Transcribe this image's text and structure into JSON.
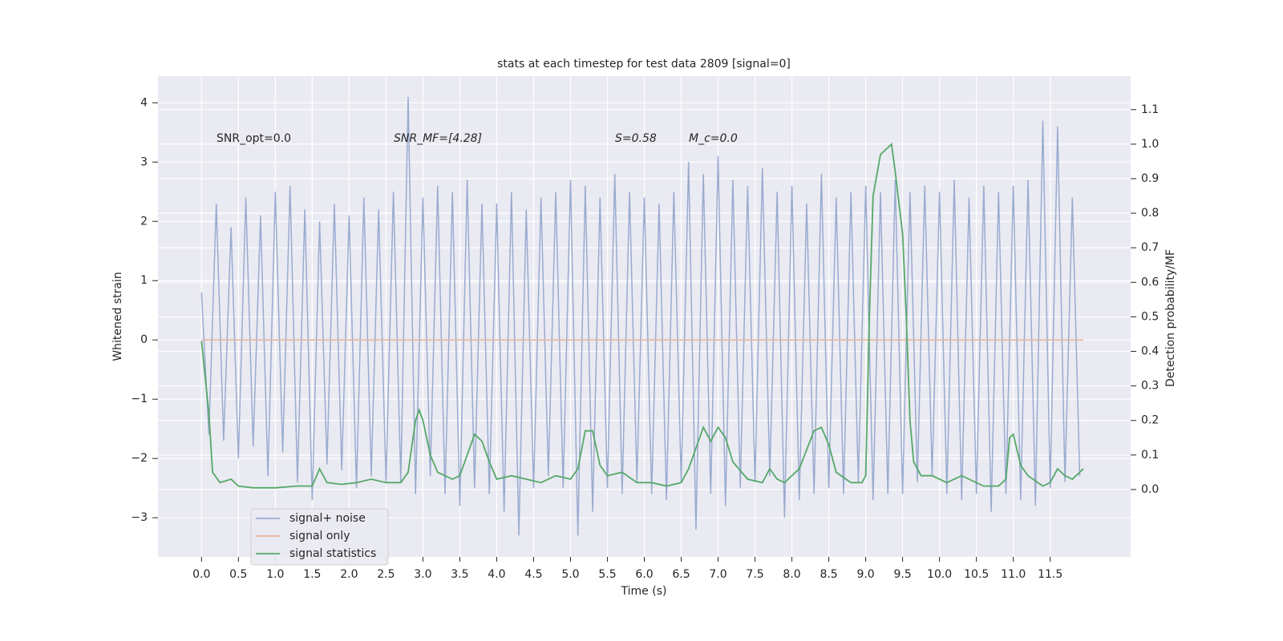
{
  "chart_data": {
    "type": "line",
    "title": "stats at each timestep for test data 2809 [signal=0]",
    "x_label": "Time (s)",
    "y_label": "Whitened strain",
    "y2_label": "Detection probability/MF",
    "annotations": [
      "SNR_opt=0.0",
      "SNR_MF=[4.28]",
      "S=0.58",
      "M_c=0.0"
    ],
    "xlim": [
      -0.59,
      12.59
    ],
    "ylim": [
      -3.66,
      4.45
    ],
    "y2lim": [
      -0.195,
      1.197
    ],
    "xticks": [
      {
        "value": 0,
        "label": "0.0"
      },
      0.5,
      {
        "value": 1,
        "label": "1.0"
      },
      1.5,
      {
        "value": 2,
        "label": "2.0"
      },
      2.5,
      {
        "value": 3,
        "label": "3.0"
      },
      3.5,
      {
        "value": 4,
        "label": "4.0"
      },
      4.5,
      {
        "value": 5,
        "label": "5.0"
      },
      5.5,
      {
        "value": 6,
        "label": "6.0"
      },
      6.5,
      {
        "value": 7,
        "label": "7.0"
      },
      7.5,
      {
        "value": 8,
        "label": "8.0"
      },
      8.5,
      {
        "value": 9,
        "label": "9.0"
      },
      9.5,
      {
        "value": 10,
        "label": "10.0"
      },
      10.5,
      {
        "value": 11,
        "label": "11.0"
      },
      11.5
    ],
    "yticks": [
      {
        "value": -3,
        "label": "−3"
      },
      {
        "value": -2,
        "label": "−2"
      },
      {
        "value": -1,
        "label": "−1"
      },
      0,
      1,
      2,
      3,
      4
    ],
    "y2ticks": [
      {
        "value": 0,
        "label": "0.0"
      },
      0.1,
      0.2,
      0.3,
      0.4,
      0.5,
      0.6,
      0.7,
      0.8,
      0.9,
      {
        "value": 1,
        "label": "1.0"
      },
      1.1
    ],
    "grid": true,
    "legend_loc": "lower left",
    "series": [
      {
        "name": "signal+ noise",
        "color": "#9aabd0",
        "x": [
          0,
          0.1,
          0.2,
          0.3,
          0.4,
          0.5,
          0.6,
          0.7,
          0.8,
          0.9,
          1,
          1.1,
          1.2,
          1.3,
          1.4,
          1.5,
          1.6,
          1.7,
          1.8,
          1.9,
          2,
          2.1,
          2.2,
          2.3,
          2.4,
          2.5,
          2.6,
          2.7,
          2.8,
          2.9,
          3,
          3.1,
          3.2,
          3.3,
          3.4,
          3.5,
          3.6,
          3.7,
          3.8,
          3.9,
          4,
          4.1,
          4.2,
          4.3,
          4.4,
          4.5,
          4.6,
          4.7,
          4.8,
          4.9,
          5,
          5.1,
          5.2,
          5.3,
          5.4,
          5.5,
          5.6,
          5.7,
          5.8,
          5.9,
          6,
          6.1,
          6.2,
          6.3,
          6.4,
          6.5,
          6.6,
          6.7,
          6.8,
          6.9,
          7,
          7.1,
          7.2,
          7.3,
          7.4,
          7.5,
          7.6,
          7.7,
          7.8,
          7.9,
          8,
          8.1,
          8.2,
          8.3,
          8.4,
          8.5,
          8.6,
          8.7,
          8.8,
          8.9,
          9,
          9.1,
          9.2,
          9.3,
          9.4,
          9.5,
          9.6,
          9.7,
          9.8,
          9.9,
          10,
          10.1,
          10.2,
          10.3,
          10.4,
          10.5,
          10.6,
          10.7,
          10.8,
          10.9,
          11,
          11.1,
          11.2,
          11.3,
          11.4,
          11.5,
          11.6,
          11.7,
          11.8,
          11.9
        ],
        "values": [
          0.8,
          -1.6,
          2.3,
          -1.7,
          1.9,
          -2.0,
          2.4,
          -1.8,
          2.1,
          -2.3,
          2.5,
          -1.9,
          2.6,
          -2.4,
          2.2,
          -2.7,
          2.0,
          -2.1,
          2.3,
          -2.2,
          2.1,
          -2.5,
          2.4,
          -2.3,
          2.2,
          -2.4,
          2.5,
          -2.4,
          4.1,
          -2.6,
          2.4,
          -2.3,
          2.6,
          -2.6,
          2.5,
          -2.8,
          2.7,
          -2.5,
          2.3,
          -2.6,
          2.3,
          -2.9,
          2.5,
          -3.3,
          2.2,
          -2.5,
          2.4,
          -2.3,
          2.5,
          -2.5,
          2.7,
          -3.3,
          2.6,
          -2.9,
          2.4,
          -2.5,
          2.8,
          -2.6,
          2.5,
          -2.4,
          2.4,
          -2.6,
          2.3,
          -2.7,
          2.5,
          -2.4,
          3.0,
          -3.2,
          2.8,
          -2.6,
          3.1,
          -2.8,
          2.7,
          -2.5,
          2.6,
          -2.4,
          2.9,
          -2.3,
          2.5,
          -3.0,
          2.6,
          -2.7,
          2.3,
          -2.6,
          2.8,
          -2.5,
          2.4,
          -2.6,
          2.5,
          -2.4,
          2.6,
          -2.7,
          2.5,
          -2.6,
          2.7,
          -2.6,
          2.5,
          -2.4,
          2.6,
          -2.3,
          2.5,
          -2.6,
          2.7,
          -2.7,
          2.4,
          -2.6,
          2.6,
          -2.9,
          2.5,
          -2.6,
          2.6,
          -2.7,
          2.7,
          -2.8,
          3.7,
          -2.5,
          3.6,
          -2.4,
          2.4,
          -2.3
        ]
      },
      {
        "name": "signal only",
        "color": "#e8b49b",
        "x": [
          0,
          11.95
        ],
        "values": [
          0,
          0
        ]
      },
      {
        "name": "signal statistics",
        "color": "#55a868",
        "axis": "y2",
        "x": [
          0,
          0.1,
          0.15,
          0.25,
          0.4,
          0.5,
          0.7,
          1,
          1.3,
          1.5,
          1.6,
          1.7,
          1.9,
          2.1,
          2.3,
          2.5,
          2.7,
          2.8,
          2.9,
          2.95,
          3,
          3.1,
          3.2,
          3.4,
          3.5,
          3.6,
          3.7,
          3.8,
          3.9,
          4,
          4.2,
          4.4,
          4.6,
          4.8,
          5,
          5.1,
          5.2,
          5.3,
          5.4,
          5.5,
          5.7,
          5.9,
          6.1,
          6.3,
          6.5,
          6.6,
          6.8,
          6.9,
          7,
          7.1,
          7.2,
          7.4,
          7.6,
          7.7,
          7.8,
          7.9,
          8.1,
          8.3,
          8.4,
          8.5,
          8.6,
          8.8,
          8.95,
          9,
          9.05,
          9.1,
          9.2,
          9.3,
          9.35,
          9.4,
          9.5,
          9.55,
          9.6,
          9.65,
          9.75,
          9.9,
          10.1,
          10.3,
          10.6,
          10.8,
          10.9,
          10.95,
          11,
          11.1,
          11.2,
          11.4,
          11.5,
          11.6,
          11.7,
          11.8,
          11.95
        ],
        "values": [
          0.43,
          0.22,
          0.05,
          0.02,
          0.03,
          0.01,
          0.005,
          0.005,
          0.01,
          0.01,
          0.06,
          0.02,
          0.015,
          0.02,
          0.03,
          0.02,
          0.02,
          0.05,
          0.2,
          0.23,
          0.2,
          0.1,
          0.05,
          0.03,
          0.04,
          0.1,
          0.16,
          0.14,
          0.08,
          0.03,
          0.04,
          0.03,
          0.02,
          0.04,
          0.03,
          0.06,
          0.17,
          0.17,
          0.07,
          0.04,
          0.05,
          0.02,
          0.02,
          0.01,
          0.02,
          0.06,
          0.18,
          0.14,
          0.18,
          0.15,
          0.08,
          0.03,
          0.02,
          0.06,
          0.03,
          0.02,
          0.06,
          0.17,
          0.18,
          0.13,
          0.05,
          0.02,
          0.02,
          0.04,
          0.5,
          0.85,
          0.97,
          0.99,
          1.0,
          0.92,
          0.74,
          0.5,
          0.2,
          0.08,
          0.04,
          0.04,
          0.02,
          0.04,
          0.01,
          0.01,
          0.03,
          0.15,
          0.16,
          0.07,
          0.04,
          0.01,
          0.02,
          0.06,
          0.04,
          0.03,
          0.06
        ]
      }
    ]
  }
}
